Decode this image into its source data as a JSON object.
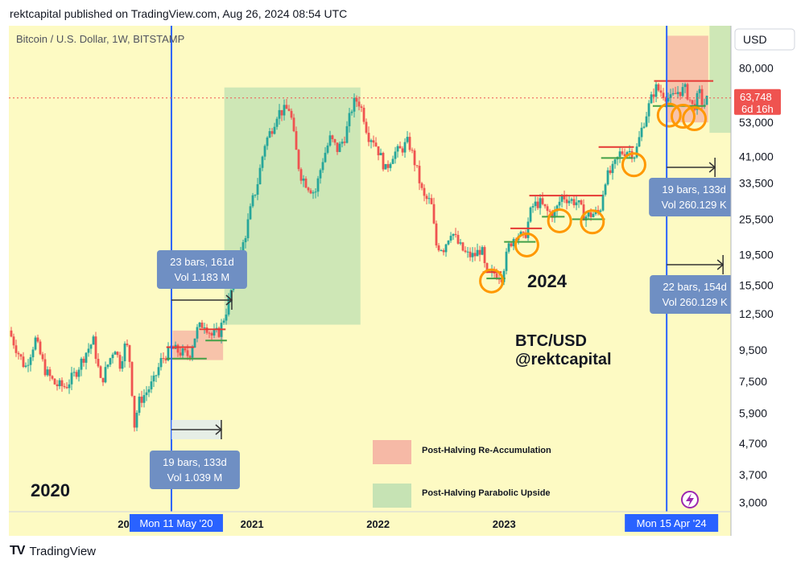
{
  "header": {
    "published": "rektcapital published on TradingView.com, Aug 26, 2024 08:54 UTC"
  },
  "footer": {
    "logo": "TV",
    "brand": "TradingView"
  },
  "chart_data": {
    "type": "candlestick",
    "title": "Bitcoin / U.S. Dollar, 1W, BITSTAMP",
    "currency": "USD",
    "scale": "log",
    "ylim": [
      2800,
      110000
    ],
    "y_ticks": [
      80000,
      53000,
      41000,
      33500,
      25500,
      19500,
      15500,
      12500,
      9500,
      7500,
      5900,
      4700,
      3700,
      3000
    ],
    "y_tick_labels": [
      "80,000",
      "53,000",
      "41,000",
      "33,500",
      "25,500",
      "19,500",
      "15,500",
      "12,500",
      "9,500",
      "7,500",
      "5,900",
      "4,700",
      "3,700",
      "3,000"
    ],
    "x_labels": [
      {
        "label": "20",
        "t": 2019.98
      },
      {
        "label": "2021",
        "t": 2021.0
      },
      {
        "label": "2022",
        "t": 2022.0
      },
      {
        "label": "2023",
        "t": 2023.0
      },
      {
        "label": "2",
        "t": 2023.98
      }
    ],
    "xlim": [
      2019.07,
      2024.8
    ],
    "halvings": [
      {
        "label": "Mon 11 May '20",
        "t": 2020.36
      },
      {
        "label": "Mon 15 Apr '24",
        "t": 2024.29
      }
    ],
    "current_price": {
      "value": 63748,
      "label": "63,748",
      "countdown": "6d 16h"
    },
    "price_path": [
      [
        2019.07,
        11000
      ],
      [
        2019.12,
        9800
      ],
      [
        2019.2,
        8300
      ],
      [
        2019.28,
        10300
      ],
      [
        2019.36,
        8100
      ],
      [
        2019.44,
        7300
      ],
      [
        2019.52,
        7200
      ],
      [
        2019.6,
        8000
      ],
      [
        2019.68,
        9300
      ],
      [
        2019.74,
        10200
      ],
      [
        2019.8,
        7400
      ],
      [
        2019.86,
        8600
      ],
      [
        2019.91,
        9800
      ],
      [
        2019.95,
        8500
      ],
      [
        2020.0,
        10100
      ],
      [
        2020.04,
        8300
      ],
      [
        2020.06,
        5200
      ],
      [
        2020.1,
        6400
      ],
      [
        2020.16,
        6900
      ],
      [
        2020.22,
        7500
      ],
      [
        2020.28,
        8800
      ],
      [
        2020.36,
        9600
      ],
      [
        2020.44,
        9300
      ],
      [
        2020.5,
        9100
      ],
      [
        2020.56,
        11000
      ],
      [
        2020.62,
        11700
      ],
      [
        2020.68,
        10600
      ],
      [
        2020.74,
        10900
      ],
      [
        2020.8,
        13000
      ],
      [
        2020.86,
        16500
      ],
      [
        2020.9,
        19000
      ],
      [
        2020.95,
        23000
      ],
      [
        2021.0,
        29000
      ],
      [
        2021.04,
        33000
      ],
      [
        2021.1,
        45000
      ],
      [
        2021.16,
        51000
      ],
      [
        2021.2,
        57000
      ],
      [
        2021.26,
        58000
      ],
      [
        2021.3,
        59000
      ],
      [
        2021.34,
        45000
      ],
      [
        2021.38,
        36000
      ],
      [
        2021.44,
        33000
      ],
      [
        2021.5,
        31000
      ],
      [
        2021.56,
        40000
      ],
      [
        2021.62,
        47000
      ],
      [
        2021.68,
        43000
      ],
      [
        2021.74,
        48000
      ],
      [
        2021.8,
        61000
      ],
      [
        2021.84,
        63000
      ],
      [
        2021.88,
        57000
      ],
      [
        2021.92,
        48000
      ],
      [
        2021.96,
        47000
      ],
      [
        2022.0,
        43000
      ],
      [
        2022.06,
        37000
      ],
      [
        2022.12,
        42000
      ],
      [
        2022.18,
        43000
      ],
      [
        2022.24,
        46000
      ],
      [
        2022.3,
        38000
      ],
      [
        2022.36,
        30000
      ],
      [
        2022.42,
        29000
      ],
      [
        2022.46,
        21000
      ],
      [
        2022.52,
        20500
      ],
      [
        2022.58,
        23500
      ],
      [
        2022.64,
        21000
      ],
      [
        2022.7,
        19500
      ],
      [
        2022.76,
        19300
      ],
      [
        2022.82,
        20500
      ],
      [
        2022.86,
        16500
      ],
      [
        2022.92,
        17000
      ],
      [
        2022.98,
        16600
      ],
      [
        2023.04,
        21000
      ],
      [
        2023.1,
        23000
      ],
      [
        2023.16,
        22000
      ],
      [
        2023.22,
        28000
      ],
      [
        2023.28,
        29000
      ],
      [
        2023.34,
        27000
      ],
      [
        2023.4,
        26500
      ],
      [
        2023.46,
        30500
      ],
      [
        2023.52,
        29500
      ],
      [
        2023.58,
        29000
      ],
      [
        2023.64,
        26000
      ],
      [
        2023.7,
        26500
      ],
      [
        2023.76,
        27000
      ],
      [
        2023.8,
        34500
      ],
      [
        2023.86,
        37000
      ],
      [
        2023.92,
        42000
      ],
      [
        2023.98,
        43000
      ],
      [
        2024.04,
        41500
      ],
      [
        2024.1,
        52000
      ],
      [
        2024.16,
        62000
      ],
      [
        2024.2,
        69000
      ],
      [
        2024.26,
        66000
      ],
      [
        2024.32,
        63000
      ],
      [
        2024.38,
        67000
      ],
      [
        2024.44,
        68000
      ],
      [
        2024.5,
        59000
      ],
      [
        2024.55,
        66000
      ],
      [
        2024.58,
        60000
      ],
      [
        2024.62,
        64000
      ]
    ],
    "annotations": {
      "boxes": [
        {
          "color": "#f6b9a6",
          "x0": 2020.37,
          "x1": 2020.77,
          "y0": 8800,
          "y1": 11000
        },
        {
          "color": "#c6e3b4",
          "x0": 2020.78,
          "x1": 2021.86,
          "y0": 11500,
          "y1": 69000
        },
        {
          "color": "#f6b9a6",
          "x0": 2024.29,
          "x1": 2024.62,
          "y0": 53000,
          "y1": 102000
        },
        {
          "color": "#c6e3b4",
          "x0": 2024.63,
          "x1": 2024.8,
          "y0": 49000,
          "y1": 110000
        }
      ],
      "red_lines": [
        {
          "x0": 2020.32,
          "x1": 2020.54,
          "y": 9700
        },
        {
          "x0": 2020.58,
          "x1": 2020.79,
          "y": 11100
        },
        {
          "x0": 2022.83,
          "x1": 2022.98,
          "y": 17100
        },
        {
          "x0": 2023.05,
          "x1": 2023.3,
          "y": 23800
        },
        {
          "x0": 2023.2,
          "x1": 2023.78,
          "y": 30500
        },
        {
          "x0": 2023.75,
          "x1": 2024.03,
          "y": 44000
        },
        {
          "x0": 2024.19,
          "x1": 2024.66,
          "y": 72500
        }
      ],
      "green_lines": [
        {
          "x0": 2020.32,
          "x1": 2020.64,
          "y": 8900
        },
        {
          "x0": 2020.63,
          "x1": 2020.8,
          "y": 10200
        },
        {
          "x0": 2022.86,
          "x1": 2023.01,
          "y": 16300
        },
        {
          "x0": 2023.0,
          "x1": 2023.25,
          "y": 21500
        },
        {
          "x0": 2023.3,
          "x1": 2023.48,
          "y": 26000
        },
        {
          "x0": 2023.54,
          "x1": 2023.8,
          "y": 25500
        },
        {
          "x0": 2023.77,
          "x1": 2024.02,
          "y": 40500
        },
        {
          "x0": 2024.18,
          "x1": 2024.6,
          "y": 60000
        }
      ],
      "circles": [
        {
          "t": 2022.9,
          "p": 16000
        },
        {
          "t": 2023.18,
          "p": 21000
        },
        {
          "t": 2023.44,
          "p": 25200
        },
        {
          "t": 2023.7,
          "p": 25000
        },
        {
          "t": 2024.03,
          "p": 38500
        },
        {
          "t": 2024.31,
          "p": 56000
        },
        {
          "t": 2024.42,
          "p": 55500
        },
        {
          "t": 2024.51,
          "p": 54500
        }
      ],
      "measures": [
        {
          "line1": "23 bars, 161d",
          "line2": "Vol 1.183 M"
        },
        {
          "line1": "19 bars, 133d",
          "line2": "Vol 1.039 M"
        },
        {
          "line1": "19 bars, 133d",
          "line2": "Vol 260.129 K"
        },
        {
          "line1": "22 bars, 154d",
          "line2": "Vol 260.129 K"
        }
      ]
    },
    "labels": {
      "year_2020": "2020",
      "year_2024": "2024",
      "brand_line1": "BTC/USD",
      "brand_line2": "@rektcapital"
    },
    "legend": [
      {
        "name": "Post-Halving Re-Accumulation",
        "color": "#f6b9a6"
      },
      {
        "name": "Post-Halving Parabolic Upside",
        "color": "#c6e3b4"
      }
    ],
    "colors": {
      "background": "#fdfac3",
      "up": "#26a69a",
      "down": "#ef5350",
      "halving": "#2962ff",
      "circle": "#ff9800",
      "measure_box": "#6f8fc3"
    }
  }
}
